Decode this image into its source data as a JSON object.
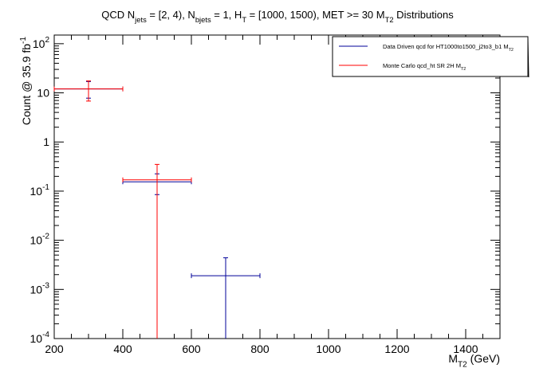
{
  "chart_data": {
    "type": "scatter",
    "title": {
      "parts": [
        {
          "text": "QCD N",
          "baseline": "normal"
        },
        {
          "text": "jets",
          "baseline": "sub"
        },
        {
          "text": " = [2, 4), N",
          "baseline": "normal"
        },
        {
          "text": "bjets",
          "baseline": "sub"
        },
        {
          "text": " = 1, H",
          "baseline": "normal"
        },
        {
          "text": "T",
          "baseline": "sub"
        },
        {
          "text": " = [1000, 1500), MET >= 30 M",
          "baseline": "normal"
        },
        {
          "text": "T2",
          "baseline": "sub"
        },
        {
          "text": " Distributions",
          "baseline": "normal"
        }
      ]
    },
    "xlabel": {
      "parts": [
        {
          "text": "M",
          "baseline": "normal"
        },
        {
          "text": "T2",
          "baseline": "sub"
        },
        {
          "text": " (GeV)",
          "baseline": "normal"
        }
      ]
    },
    "ylabel": {
      "parts": [
        {
          "text": "Count @ 35.9 fb",
          "baseline": "normal"
        },
        {
          "text": "-1",
          "baseline": "super"
        }
      ]
    },
    "xlim": [
      200,
      1500
    ],
    "ylim": [
      0.0001,
      150
    ],
    "y_scale": "log",
    "x_ticks": [
      200,
      400,
      600,
      800,
      1000,
      1200,
      1400
    ],
    "y_ticks": [
      {
        "value": 0.0001,
        "base": "10",
        "exp": "-4"
      },
      {
        "value": 0.001,
        "base": "10",
        "exp": "-3"
      },
      {
        "value": 0.01,
        "base": "10",
        "exp": "-2"
      },
      {
        "value": 0.1,
        "base": "10",
        "exp": "-1"
      },
      {
        "value": 1,
        "base": "1",
        "exp": ""
      },
      {
        "value": 10,
        "base": "10",
        "exp": ""
      },
      {
        "value": 100,
        "base": "10",
        "exp": "2"
      }
    ],
    "legend_position": "top-right",
    "series": [
      {
        "name": {
          "parts": [
            {
              "text": "Data Driven qcd for HT1000to1500_j2to3_b1 M",
              "baseline": "normal"
            },
            {
              "text": "T2",
              "baseline": "sub"
            }
          ]
        },
        "color": "#000099",
        "points": [
          {
            "x": 300,
            "xlow": 200,
            "xhigh": 400,
            "y": 12.0,
            "ylow": 7.8,
            "yhigh": 17.0
          },
          {
            "x": 500,
            "xlow": 400,
            "xhigh": 600,
            "y": 0.155,
            "ylow": 0.085,
            "yhigh": 0.225
          },
          {
            "x": 700,
            "xlow": 600,
            "xhigh": 800,
            "y": 0.0019,
            "ylow": 0.0001,
            "yhigh": 0.0044
          }
        ]
      },
      {
        "name": {
          "parts": [
            {
              "text": "Monte Carlo qcd_ht SR 2H M",
              "baseline": "normal"
            },
            {
              "text": "T2",
              "baseline": "sub"
            }
          ]
        },
        "color": "#ff0000",
        "points": [
          {
            "x": 300,
            "xlow": 200,
            "xhigh": 400,
            "y": 12.0,
            "ylow": 6.8,
            "yhigh": 17.5
          },
          {
            "x": 500,
            "xlow": 400,
            "xhigh": 600,
            "y": 0.17,
            "ylow": 0.0001,
            "yhigh": 0.35
          }
        ]
      }
    ]
  }
}
